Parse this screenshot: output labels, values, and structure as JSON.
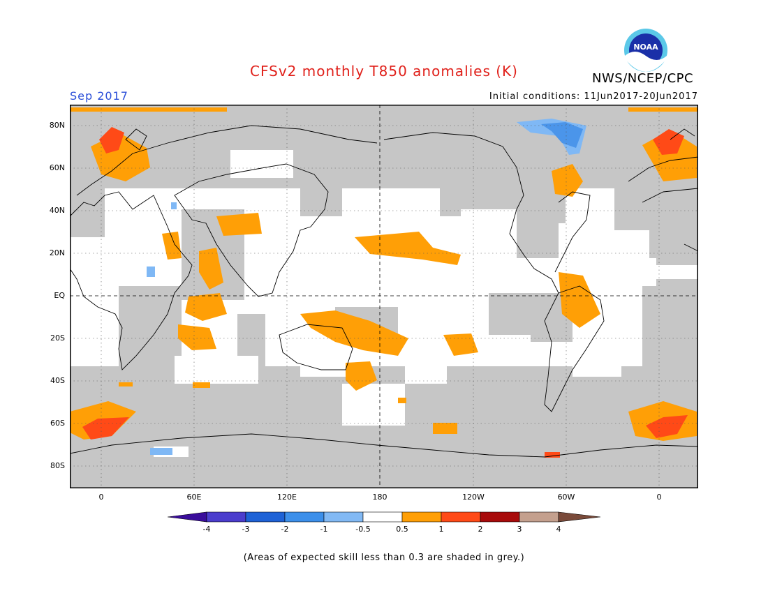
{
  "header": {
    "title": "CFSv2 monthly T850 anomalies (K)",
    "agency": "NWS/NCEP/CPC",
    "logo_text": "NOAA",
    "valid_month": "Sep 2017",
    "initial_conditions": "Initial conditions: 11Jun2017-20Jun2017"
  },
  "map": {
    "lat_labels": [
      "80N",
      "60N",
      "40N",
      "20N",
      "EQ",
      "20S",
      "40S",
      "60S",
      "80S"
    ],
    "lon_labels": [
      "0",
      "60E",
      "120E",
      "180",
      "120W",
      "60W",
      "0"
    ],
    "colors": {
      "skill_shade": "#c6c6c6",
      "coast": "#000000",
      "grid": "#555555",
      "warm_0_5_1": "#ff9f06",
      "warm_1_2": "#ff4a17",
      "cold_neg1_neg0_5": "#7fb8f5",
      "cold_neg2_neg1": "#4b95ea"
    }
  },
  "colorbar": {
    "ticks": [
      "-4",
      "-3",
      "-2",
      "-1",
      "-0.5",
      "0.5",
      "1",
      "2",
      "3",
      "4"
    ],
    "colors": [
      "#3a0d9b",
      "#4b3dcd",
      "#1e62d6",
      "#3c8fea",
      "#82b9f4",
      "#ffffff",
      "#ff9f06",
      "#ff4a17",
      "#a80b0b",
      "#c4a08e",
      "#7a4a3a"
    ]
  },
  "footnote": "(Areas of expected skill less than 0.3 are shaded in grey.)"
}
